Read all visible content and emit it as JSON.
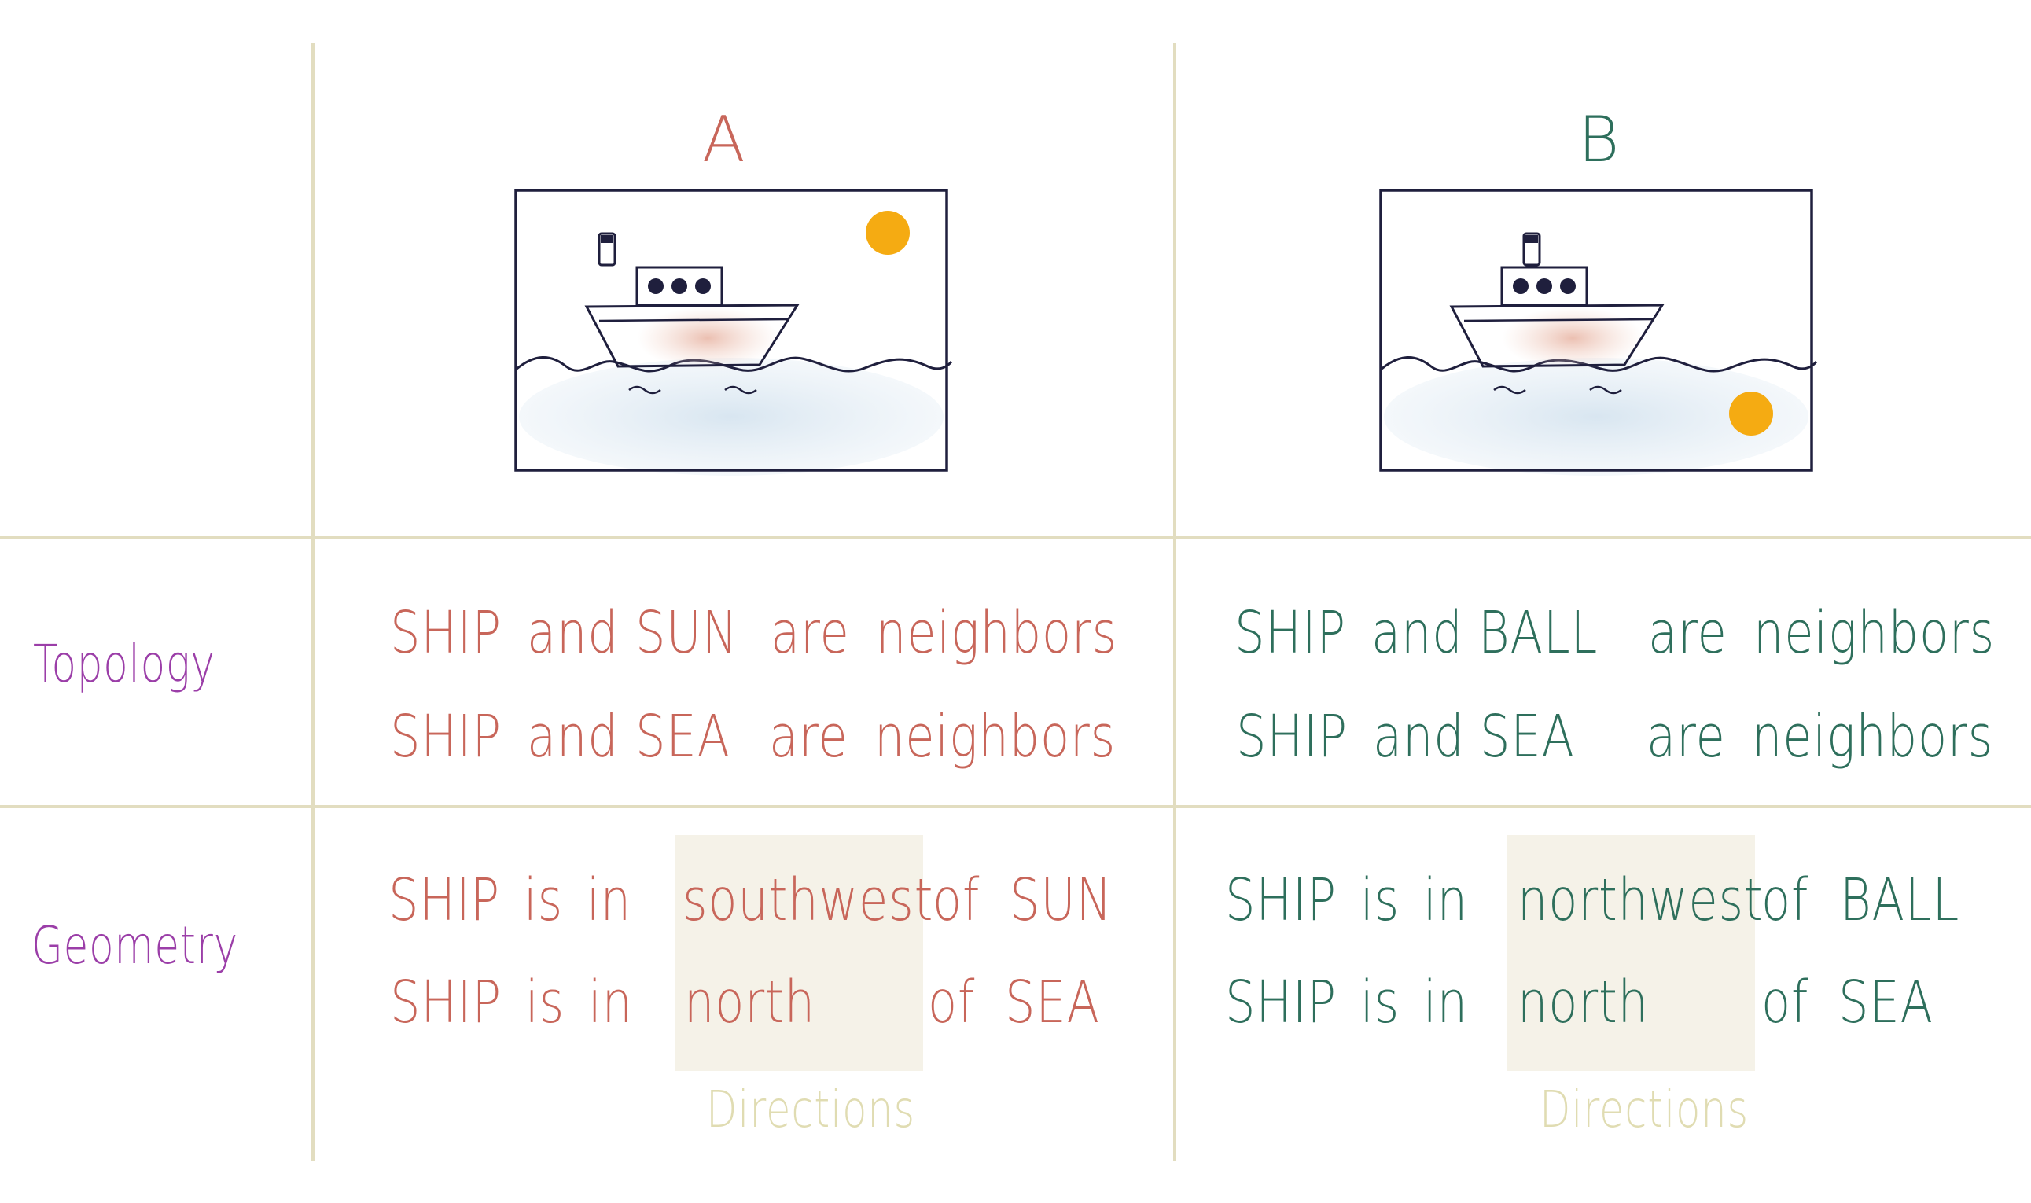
{
  "columns": [
    {
      "label": "A"
    },
    {
      "label": "B"
    }
  ],
  "rows": {
    "topology": "Topology",
    "geometry": "Geometry"
  },
  "colors": {
    "a_text": "#c8665a",
    "b_text": "#2e6f5c",
    "row_label": "#9b3ea8",
    "grid": "#e2ddc0",
    "sun": "#f5ab12",
    "outline": "#1f1f3d",
    "highlight": "#f5f2e8",
    "caption": "#e0dcb2"
  },
  "icons": [
    "ship-icon",
    "sun-icon",
    "ball-icon",
    "sea-icon"
  ],
  "a": {
    "topology": [
      {
        "subject": "SHIP",
        "and": "and",
        "object": "SUN",
        "predicate": "are",
        "relation": "neighbors"
      },
      {
        "subject": "SHIP",
        "and": "and",
        "object": "SEA",
        "predicate": "are",
        "relation": "neighbors"
      }
    ],
    "geometry": [
      {
        "subject": "SHIP",
        "is": "is",
        "in": "in",
        "direction": "southwest",
        "of": "of",
        "object": "SUN"
      },
      {
        "subject": "SHIP",
        "is": "is",
        "in": "in",
        "direction": "north",
        "of": "of",
        "object": "SEA"
      }
    ],
    "caption": "Directions"
  },
  "b": {
    "topology": [
      {
        "subject": "SHIP",
        "and": "and",
        "object": "BALL",
        "predicate": "are",
        "relation": "neighbors"
      },
      {
        "subject": "SHIP",
        "and": "and",
        "object": "SEA",
        "predicate": "are",
        "relation": "neighbors"
      }
    ],
    "geometry": [
      {
        "subject": "SHIP",
        "is": "is",
        "in": "in",
        "direction": "northwest",
        "of": "of",
        "object": "BALL"
      },
      {
        "subject": "SHIP",
        "is": "is",
        "in": "in",
        "direction": "north",
        "of": "of",
        "object": "SEA"
      }
    ],
    "caption": "Directions"
  }
}
